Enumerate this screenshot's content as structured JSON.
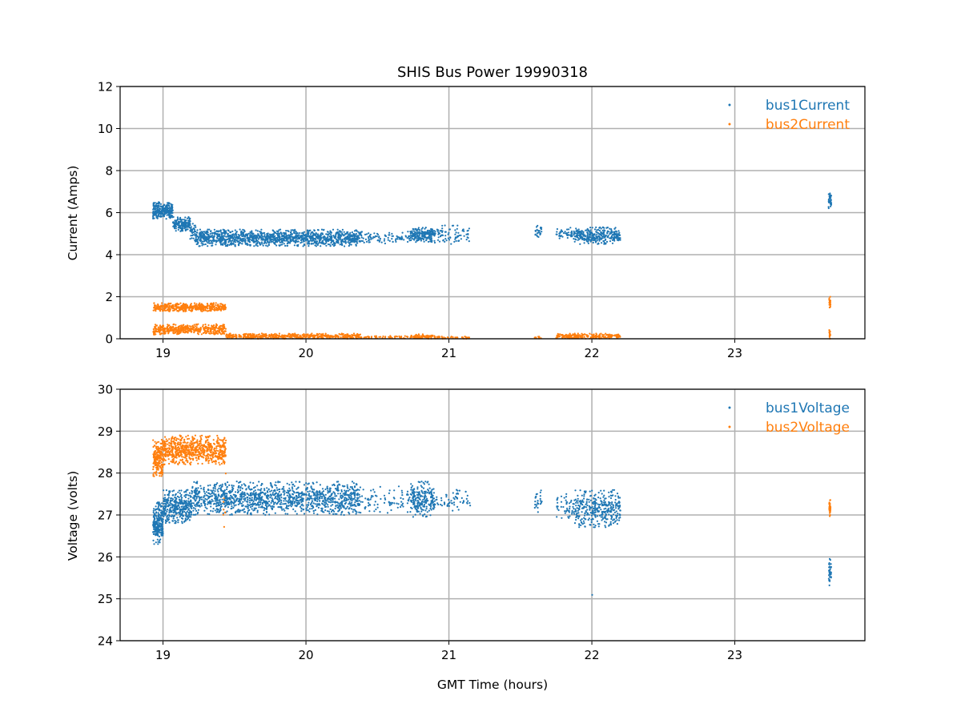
{
  "chart_data": [
    {
      "type": "scatter",
      "title": "SHIS Bus Power 19990318",
      "xlabel": "",
      "ylabel": "Current (Amps)",
      "xlim": [
        18.7,
        23.91
      ],
      "ylim": [
        0,
        12
      ],
      "xticks": [
        19,
        20,
        21,
        22,
        23
      ],
      "yticks": [
        0,
        2,
        4,
        6,
        8,
        10,
        12
      ],
      "grid": true,
      "legend_position": "top-right",
      "series": [
        {
          "name": "bus1Current",
          "color": "#1f77b4",
          "segments_note": "[t_start_hours, t_end_hours, value_low, value_high, approx_points]",
          "segments": [
            [
              18.93,
              19.07,
              5.7,
              6.5,
              260
            ],
            [
              19.07,
              19.19,
              5.1,
              5.8,
              160
            ],
            [
              19.19,
              19.23,
              4.6,
              5.5,
              40
            ],
            [
              19.23,
              20.38,
              4.4,
              5.2,
              1300
            ],
            [
              20.38,
              20.73,
              4.5,
              5.1,
              90
            ],
            [
              20.73,
              20.9,
              4.6,
              5.3,
              200
            ],
            [
              20.9,
              21.15,
              4.5,
              5.4,
              80
            ],
            [
              21.6,
              21.65,
              4.8,
              5.4,
              25
            ],
            [
              21.75,
              21.88,
              4.7,
              5.3,
              50
            ],
            [
              21.88,
              22.2,
              4.5,
              5.3,
              330
            ],
            [
              23.655,
              23.675,
              6.2,
              7.0,
              40
            ]
          ]
        },
        {
          "name": "bus2Current",
          "color": "#ff7f0e",
          "segments": [
            [
              18.93,
              19.44,
              1.3,
              1.7,
              450
            ],
            [
              18.93,
              19.44,
              0.2,
              0.7,
              450
            ],
            [
              19.44,
              20.38,
              0.0,
              0.25,
              500
            ],
            [
              20.38,
              20.73,
              0.0,
              0.15,
              50
            ],
            [
              20.73,
              20.9,
              0.0,
              0.22,
              80
            ],
            [
              20.9,
              21.15,
              0.0,
              0.12,
              40
            ],
            [
              21.6,
              21.65,
              0.0,
              0.1,
              12
            ],
            [
              21.75,
              22.2,
              0.0,
              0.25,
              220
            ],
            [
              23.66,
              23.67,
              1.4,
              2.0,
              25
            ],
            [
              23.66,
              23.67,
              0.0,
              0.5,
              15
            ]
          ]
        }
      ]
    },
    {
      "type": "scatter",
      "title": "",
      "xlabel": "GMT Time (hours)",
      "ylabel": "Voltage (volts)",
      "xlim": [
        18.7,
        23.91
      ],
      "ylim": [
        24,
        30
      ],
      "xticks": [
        19,
        20,
        21,
        22,
        23
      ],
      "yticks": [
        24,
        25,
        26,
        27,
        28,
        29,
        30
      ],
      "grid": true,
      "legend_position": "top-right",
      "series": [
        {
          "name": "bus1Voltage",
          "color": "#1f77b4",
          "segments": [
            [
              18.93,
              19.0,
              26.3,
              27.3,
              220
            ],
            [
              19.0,
              19.2,
              26.8,
              27.6,
              350
            ],
            [
              19.2,
              20.38,
              27.0,
              27.8,
              1300
            ],
            [
              20.38,
              20.73,
              27.0,
              27.7,
              80
            ],
            [
              20.73,
              20.9,
              26.95,
              27.8,
              220
            ],
            [
              20.9,
              21.15,
              27.1,
              27.6,
              60
            ],
            [
              21.6,
              21.65,
              27.0,
              27.6,
              25
            ],
            [
              21.75,
              21.88,
              26.9,
              27.5,
              50
            ],
            [
              21.88,
              22.2,
              26.7,
              27.6,
              350
            ],
            [
              22.0,
              22.005,
              25.08,
              25.1,
              1
            ],
            [
              23.655,
              23.675,
              25.3,
              26.0,
              40
            ]
          ]
        },
        {
          "name": "bus2Voltage",
          "color": "#ff7f0e",
          "segments": [
            [
              18.93,
              19.0,
              27.9,
              28.8,
              200
            ],
            [
              19.0,
              19.44,
              28.2,
              28.9,
              700
            ],
            [
              19.42,
              19.44,
              26.4,
              28.0,
              8
            ],
            [
              23.66,
              23.67,
              26.9,
              27.4,
              35
            ]
          ]
        }
      ]
    }
  ]
}
